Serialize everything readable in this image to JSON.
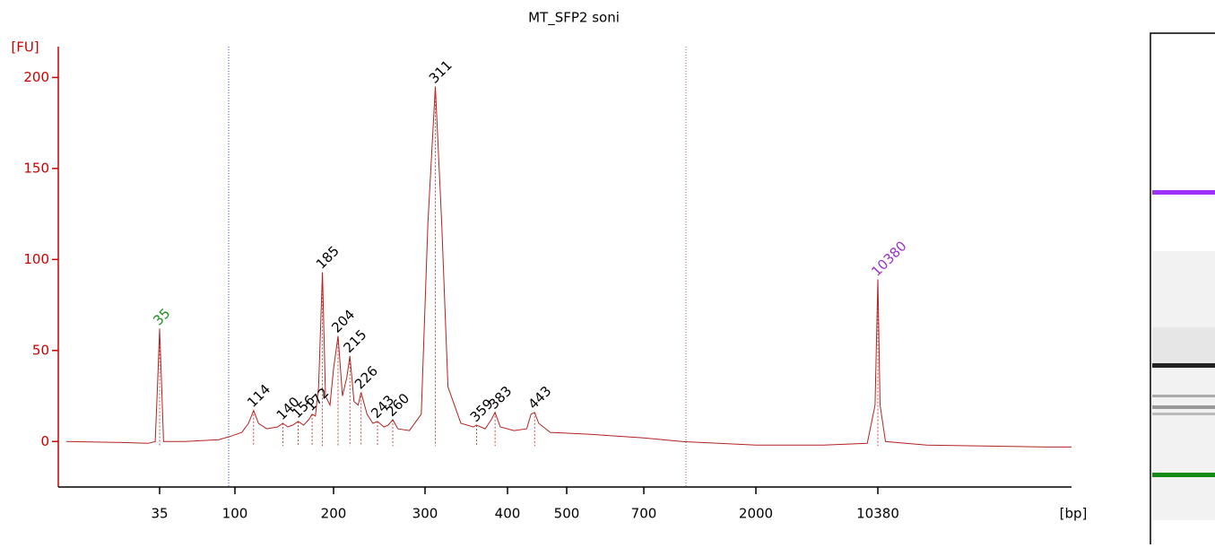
{
  "chart_data": {
    "type": "line",
    "title": "MT_SFP2 soni",
    "y_label": "[FU]",
    "x_label": "[bp]",
    "ylim": [
      -25,
      213
    ],
    "yticks": [
      0,
      50,
      100,
      150,
      200
    ],
    "xlim": [
      9,
      140000
    ],
    "xticks": [
      35,
      100,
      200,
      300,
      400,
      500,
      700,
      2000,
      10380
    ],
    "color": "#b22222",
    "series": [
      {
        "x": [
          10,
          20,
          30,
          33,
          34,
          35,
          36,
          37,
          50,
          80,
          95,
          105,
          110,
          114,
          118,
          125,
          135,
          140,
          145,
          150,
          156,
          162,
          168,
          172,
          176,
          180,
          185,
          189,
          195,
          200,
          204,
          208,
          212,
          215,
          219,
          223,
          226,
          232,
          238,
          243,
          250,
          255,
          260,
          266,
          280,
          295,
          303,
          311,
          318,
          325,
          340,
          355,
          359,
          370,
          378,
          383,
          390,
          410,
          430,
          437,
          443,
          450,
          470,
          550,
          700,
          1000,
          2000,
          5000,
          9000,
          10000,
          10380,
          10700,
          11500,
          20000,
          100000,
          140000
        ],
        "values": [
          0,
          -0.5,
          -1,
          0,
          30,
          62,
          30,
          0,
          0,
          1,
          3,
          5,
          10,
          17,
          10,
          7,
          8,
          10,
          8,
          9,
          11,
          9,
          12,
          15,
          14,
          30,
          93,
          25,
          20,
          40,
          58,
          25,
          35,
          47,
          22,
          20,
          27,
          15,
          10,
          11,
          8,
          9,
          12,
          7,
          6,
          15,
          120,
          195,
          120,
          30,
          10,
          8,
          9,
          7,
          12,
          16,
          8,
          6,
          7,
          15,
          16,
          10,
          5,
          4,
          2,
          0,
          -2,
          -2,
          -1,
          20,
          89,
          20,
          0,
          -2,
          -3,
          -3
        ]
      }
    ],
    "peaks": [
      {
        "bp": 35,
        "height": 62,
        "color": "#228b22"
      },
      {
        "bp": 114,
        "height": 17,
        "color": "#000000"
      },
      {
        "bp": 140,
        "height": 10,
        "color": "#000000"
      },
      {
        "bp": 156,
        "height": 11,
        "color": "#000000"
      },
      {
        "bp": 172,
        "height": 15,
        "color": "#000000"
      },
      {
        "bp": 185,
        "height": 93,
        "color": "#000000"
      },
      {
        "bp": 204,
        "height": 58,
        "color": "#000000"
      },
      {
        "bp": 215,
        "height": 47,
        "color": "#000000"
      },
      {
        "bp": 226,
        "height": 27,
        "color": "#000000"
      },
      {
        "bp": 243,
        "height": 11,
        "color": "#000000"
      },
      {
        "bp": 260,
        "height": 12,
        "color": "#000000"
      },
      {
        "bp": 311,
        "height": 195,
        "color": "#000000"
      },
      {
        "bp": 359,
        "height": 9,
        "color": "#000000"
      },
      {
        "bp": 383,
        "height": 16,
        "color": "#000000"
      },
      {
        "bp": 443,
        "height": 16,
        "color": "#000000"
      },
      {
        "bp": 10380,
        "height": 89,
        "color": "#9932cc"
      }
    ]
  }
}
